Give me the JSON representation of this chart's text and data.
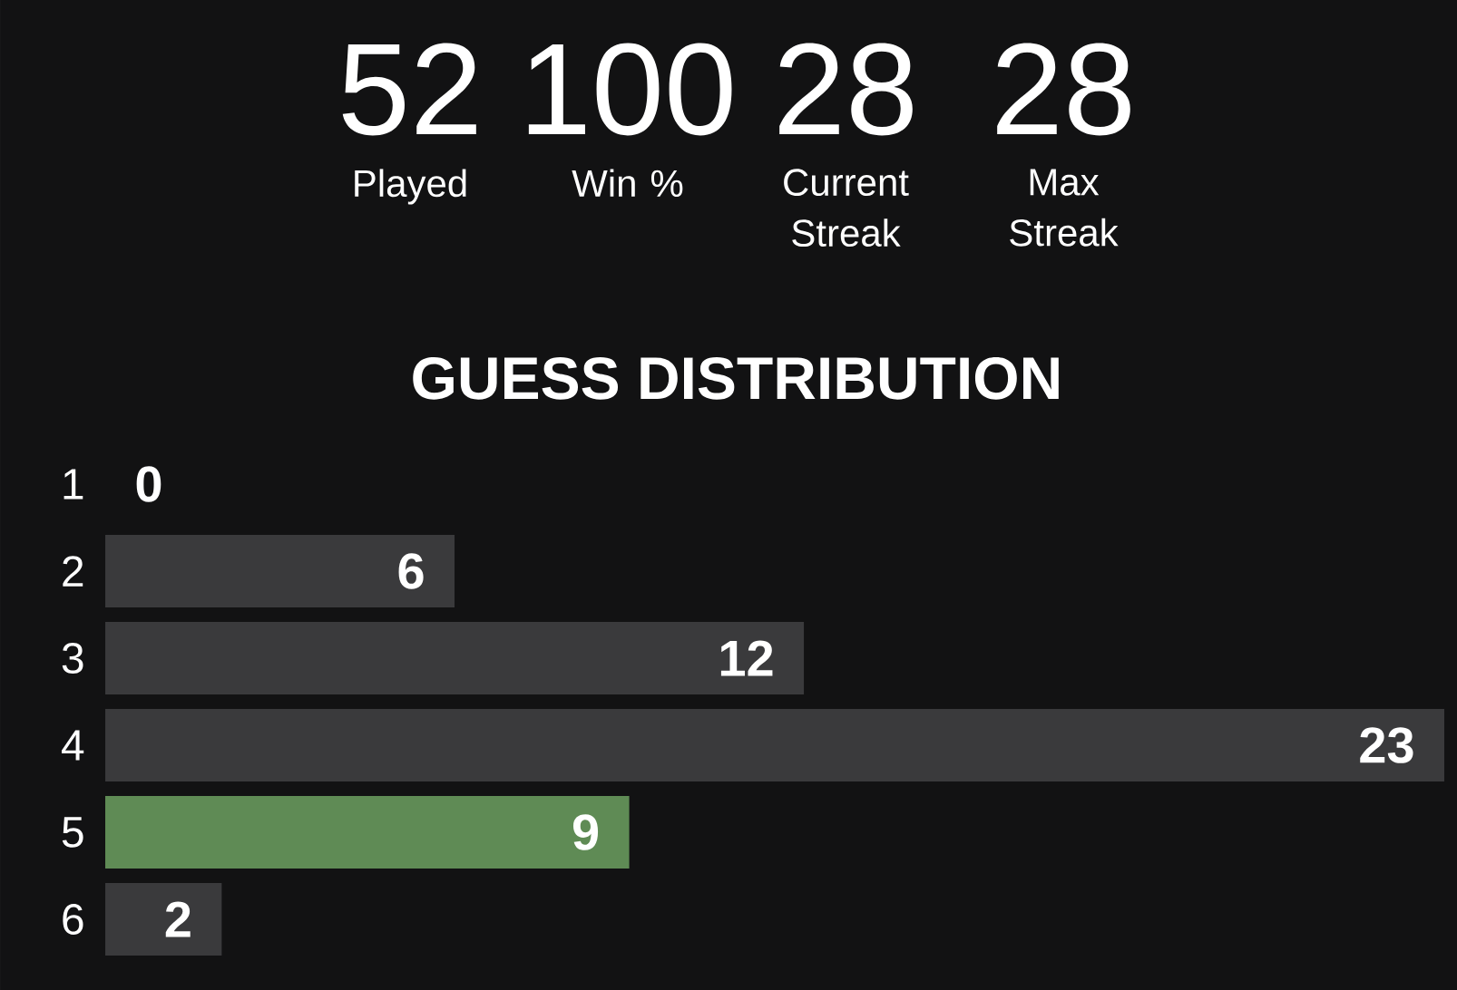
{
  "chart_data": [
    {
      "type": "other",
      "categories": [
        "Played",
        "Win %",
        "Current Streak",
        "Max Streak"
      ],
      "values": [
        52,
        100,
        28,
        28
      ],
      "data_labels": true
    },
    {
      "type": "bar",
      "orientation": "horizontal",
      "title": "GUESS DISTRIBUTION",
      "categories": [
        "1",
        "2",
        "3",
        "4",
        "5",
        "6"
      ],
      "values": [
        0,
        6,
        12,
        23,
        9,
        2
      ],
      "colors": [
        "#3a3a3c",
        "#3a3a3c",
        "#3a3a3c",
        "#3a3a3c",
        "#5f8b55",
        "#3a3a3c"
      ],
      "data_labels": true,
      "xlim": [
        0,
        23
      ]
    }
  ]
}
